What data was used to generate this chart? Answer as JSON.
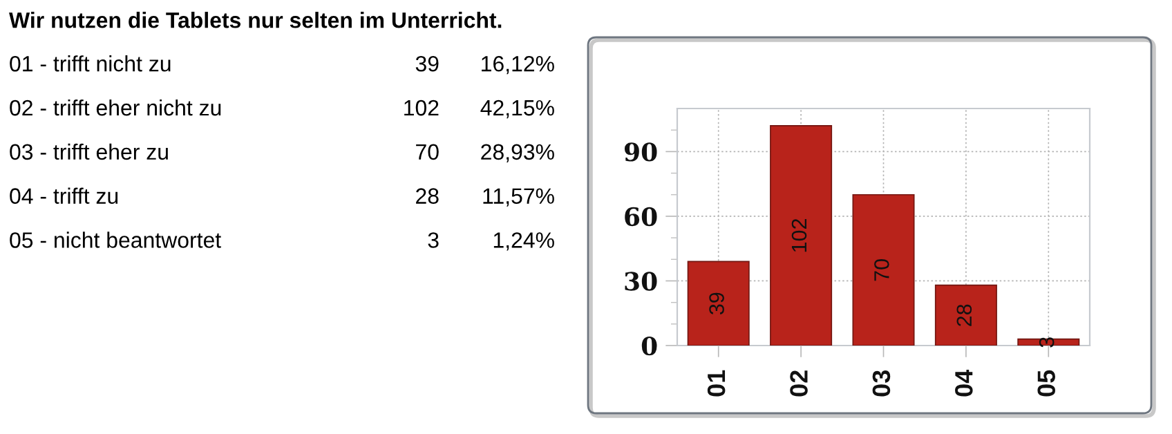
{
  "chart_data": {
    "type": "bar",
    "title": "Wir nutzen die Tablets nur selten im Unterricht.",
    "categories": [
      "01",
      "02",
      "03",
      "04",
      "05"
    ],
    "values": [
      39,
      102,
      70,
      28,
      3
    ],
    "color": "#b8231b",
    "ylim": [
      0,
      110
    ],
    "yticks": [
      0,
      {
        "value": 10,
        "label": null
      },
      {
        "value": 20,
        "label": null
      },
      30,
      {
        "value": 40,
        "label": null
      },
      {
        "value": 50,
        "label": null
      },
      60,
      {
        "value": 70,
        "label": null
      },
      {
        "value": 80,
        "label": null
      },
      90,
      {
        "value": 100,
        "label": null
      }
    ],
    "grid": true,
    "data_labels": true,
    "annotations": [
      "01 - trifft nicht zu",
      "39",
      "16,12%",
      "02 - trifft eher nicht zu",
      "102",
      "42,15%",
      "03 - trifft eher zu",
      "70",
      "28,93%",
      "04 - trifft zu",
      "28",
      "11,57%",
      "05 - nicht beantwortet",
      "3",
      "1,24%"
    ]
  }
}
